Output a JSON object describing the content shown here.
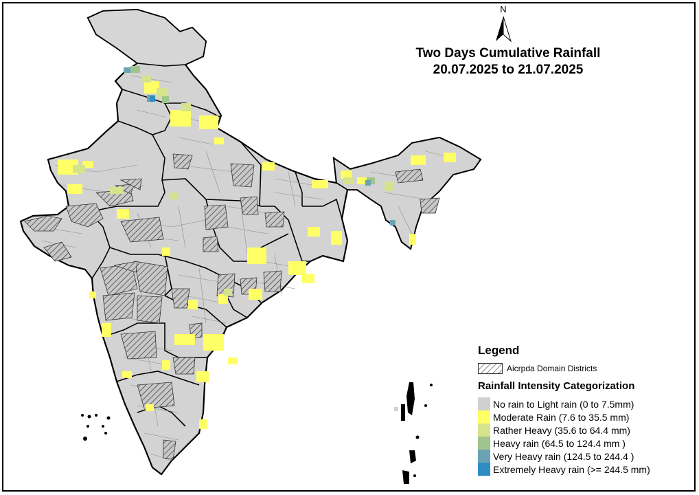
{
  "title": {
    "line1": "Two Days Cumulative Rainfall",
    "line2": "20.07.2025 to 21.07.2025"
  },
  "north_arrow": {
    "label": "N"
  },
  "legend": {
    "title": "Legend",
    "domain_label": "Aicrpda Domain Districts",
    "categorization_title": "Rainfall Intensity Categorization",
    "categories": [
      {
        "label": "No rain to Light rain (0 to 7.5mm)",
        "color": "#d0d0d0"
      },
      {
        "label": "Moderate Rain (7.6 to 35.5 mm)",
        "color": "#ffff66"
      },
      {
        "label": "Rather Heavy (35.6 to 64.4 mm)",
        "color": "#d6e38c"
      },
      {
        "label": "Heavy rain (64.5 to 124.4 mm )",
        "color": "#9fc48e"
      },
      {
        "label": "Very Heavy rain (124.5 to 244.4 )",
        "color": "#6aa3b4"
      },
      {
        "label": "Extremely Heavy rain  (>= 244.5 mm)",
        "color": "#2f8dc4"
      }
    ]
  },
  "map": {
    "base_color": "#d3d3d3",
    "boundary_color": "#000000",
    "district_line_color": "#8c8c8c"
  }
}
